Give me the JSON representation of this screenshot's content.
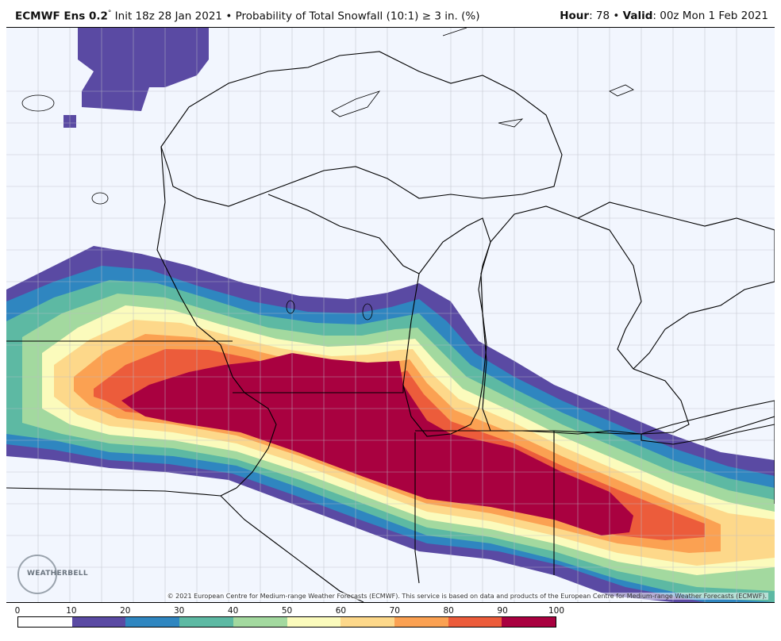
{
  "header": {
    "model": "ECMWF Ens 0.2",
    "degree": "°",
    "init": "Init 18z 28 Jan 2021",
    "bullet": "•",
    "field": "Probability of Total Snowfall (10:1) ≥ 3 in. (%)",
    "hour_label": "Hour",
    "hour_value": ": 78",
    "valid_label": "Valid",
    "valid_value": ": 00z Mon 1 Feb 2021"
  },
  "map": {
    "region": "Upper Midwest / Great Lakes",
    "background_color": "#f2f6fe",
    "boundary_color": "#000000",
    "county_color": "#b9bcc6",
    "credit": "© 2021 European Centre for Medium-range Weather Forecasts (ECMWF). This service is based on data and products of the European Centre for Medium-range Weather Forecasts (ECMWF).",
    "logo_text": "WEATHERBELL",
    "logo_icon": "weatherbell-logo-icon"
  },
  "legend": {
    "ticks": [
      "0",
      "10",
      "20",
      "30",
      "40",
      "50",
      "60",
      "70",
      "80",
      "90",
      "100"
    ],
    "colors": [
      "#ffffff",
      "#5a4aa3",
      "#2f86c0",
      "#5db9a3",
      "#a3d99f",
      "#fbfbbc",
      "#fdd88a",
      "#fba152",
      "#ec5c3b",
      "#a90140"
    ]
  }
}
